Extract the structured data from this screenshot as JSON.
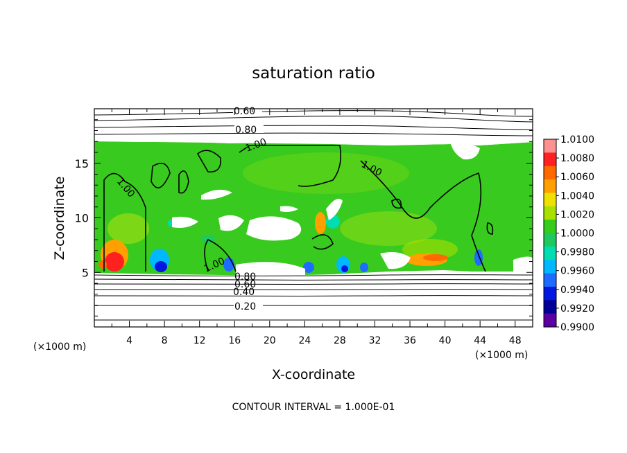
{
  "chart_data": {
    "type": "heatmap",
    "title": "saturation ratio",
    "xlabel": "X-coordinate",
    "ylabel": "Z-coordinate",
    "x_unit_left": "(×1000 m)",
    "x_unit_right": "(×1000 m)",
    "footer": "CONTOUR INTERVAL = 1.000E-01",
    "xlim": [
      0,
      50
    ],
    "ylim": [
      0,
      20
    ],
    "x_ticks": [
      "4",
      "8",
      "12",
      "16",
      "20",
      "24",
      "28",
      "32",
      "36",
      "40",
      "44",
      "48"
    ],
    "y_ticks": [
      "5",
      "10",
      "15"
    ],
    "contour_labels": [
      "0.60",
      "0.80",
      "1.00",
      "1.00",
      "1.00",
      "1.00",
      "0.80",
      "0.60",
      "0.40",
      "0.20"
    ],
    "colorbar": {
      "labels": [
        "1.0100",
        "1.0080",
        "1.0060",
        "1.0040",
        "1.0020",
        "1.0000",
        "0.9980",
        "0.9960",
        "0.9940",
        "0.9920",
        "0.9900"
      ],
      "colors": [
        "#ff9090",
        "#ff2020",
        "#ff6a00",
        "#ffa000",
        "#f0e000",
        "#a8e000",
        "#36cc1c",
        "#20c860",
        "#00ddb0",
        "#00b8ff",
        "#1e6cff",
        "#0018e0",
        "#000098",
        "#5a00a0"
      ]
    }
  }
}
